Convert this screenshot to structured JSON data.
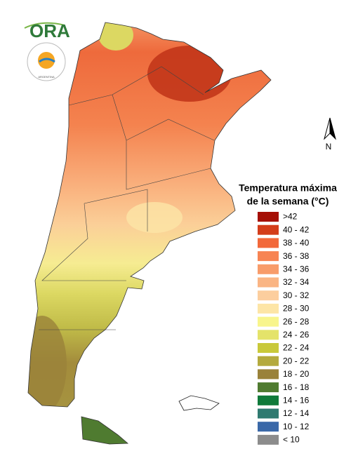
{
  "logo": {
    "name": "ORA",
    "country": "ARGENTINA"
  },
  "north_label": "N",
  "legend": {
    "title": [
      "Temperatura máxima",
      "de la semana (°C)"
    ],
    "items": [
      {
        "label": ">42",
        "color": "#a50f05"
      },
      {
        "label": "40 - 42",
        "color": "#d43d1a"
      },
      {
        "label": "38 - 40",
        "color": "#f2683a"
      },
      {
        "label": "36 - 38",
        "color": "#f78453"
      },
      {
        "label": "34 - 36",
        "color": "#f89c6a"
      },
      {
        "label": "32 - 34",
        "color": "#fab584"
      },
      {
        "label": "30 - 32",
        "color": "#fcce9e"
      },
      {
        "label": "28 - 30",
        "color": "#fde5a6"
      },
      {
        "label": "26 - 28",
        "color": "#f8f58c"
      },
      {
        "label": "24 - 26",
        "color": "#e4e36a"
      },
      {
        "label": "22 - 24",
        "color": "#c9c93a"
      },
      {
        "label": "20 - 22",
        "color": "#b4aa3e"
      },
      {
        "label": "18 - 20",
        "color": "#9a823a"
      },
      {
        "label": "16 - 18",
        "color": "#4f7b30"
      },
      {
        "label": "14 - 16",
        "color": "#0f7a3a"
      },
      {
        "label": "12 - 14",
        "color": "#2f7a70"
      },
      {
        "label": "10 - 12",
        "color": "#3a68a8"
      },
      {
        "label": "< 10",
        "color": "#8c8c8c"
      }
    ]
  }
}
